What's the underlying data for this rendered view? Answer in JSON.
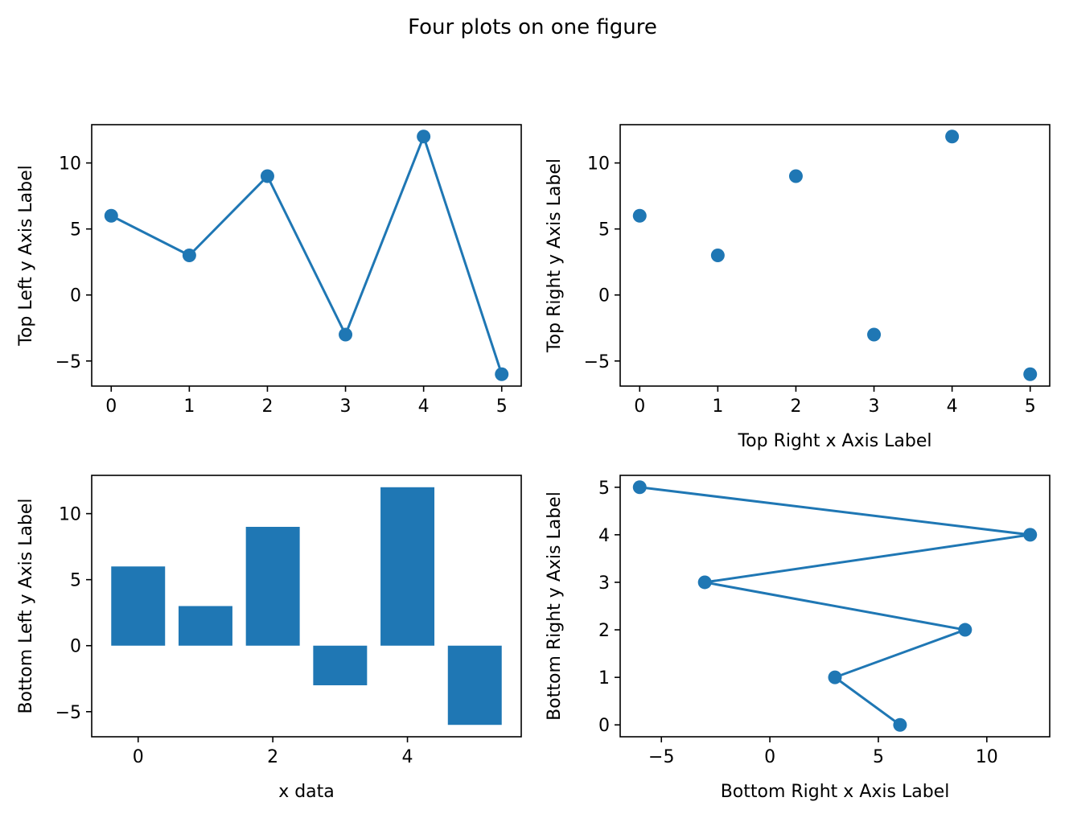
{
  "figure": {
    "title": "Four plots on one figure"
  },
  "colors": {
    "series": "#1f77b4",
    "axis": "#000000"
  },
  "chart_data": [
    {
      "id": "top-left",
      "type": "line",
      "markers": true,
      "x": [
        0,
        1,
        2,
        3,
        4,
        5
      ],
      "y": [
        6,
        3,
        9,
        -3,
        12,
        -6
      ],
      "xlabel": "",
      "ylabel": "Top Left y Axis Label",
      "xlim": [
        -0.25,
        5.25
      ],
      "ylim": [
        -6.9,
        12.9
      ],
      "xticks": [
        0,
        1,
        2,
        3,
        4,
        5
      ],
      "xtick_labels": [
        "0",
        "1",
        "2",
        "3",
        "4",
        "5"
      ],
      "yticks": [
        -5,
        0,
        5,
        10
      ],
      "ytick_labels": [
        "−5",
        "0",
        "5",
        "10"
      ],
      "grid": false
    },
    {
      "id": "top-right",
      "type": "scatter",
      "x": [
        0,
        1,
        2,
        3,
        4,
        5
      ],
      "y": [
        6,
        3,
        9,
        -3,
        12,
        -6
      ],
      "xlabel": "Top Right x Axis Label",
      "ylabel": "Top Right y Axis Label",
      "xlim": [
        -0.25,
        5.25
      ],
      "ylim": [
        -6.9,
        12.9
      ],
      "xticks": [
        0,
        1,
        2,
        3,
        4,
        5
      ],
      "xtick_labels": [
        "0",
        "1",
        "2",
        "3",
        "4",
        "5"
      ],
      "yticks": [
        -5,
        0,
        5,
        10
      ],
      "ytick_labels": [
        "−5",
        "0",
        "5",
        "10"
      ],
      "grid": false
    },
    {
      "id": "bottom-left",
      "type": "bar",
      "x": [
        0,
        1,
        2,
        3,
        4,
        5
      ],
      "y": [
        6,
        3,
        9,
        -3,
        12,
        -6
      ],
      "bar_width": 0.8,
      "xlabel": "x data",
      "ylabel": "Bottom Left y Axis Label",
      "xlim": [
        -0.69,
        5.69
      ],
      "ylim": [
        -6.9,
        12.9
      ],
      "xticks": [
        0,
        2,
        4
      ],
      "xtick_labels": [
        "0",
        "2",
        "4"
      ],
      "yticks": [
        -5,
        0,
        5,
        10
      ],
      "ytick_labels": [
        "−5",
        "0",
        "5",
        "10"
      ],
      "grid": false
    },
    {
      "id": "bottom-right",
      "type": "line",
      "markers": true,
      "x": [
        6,
        3,
        9,
        -3,
        12,
        -6
      ],
      "y": [
        0,
        1,
        2,
        3,
        4,
        5
      ],
      "xlabel": "Bottom Right x Axis Label",
      "ylabel": "Bottom Right y Axis Label",
      "xlim": [
        -6.9,
        12.9
      ],
      "ylim": [
        -0.25,
        5.25
      ],
      "xticks": [
        -5,
        0,
        5,
        10
      ],
      "xtick_labels": [
        "−5",
        "0",
        "5",
        "10"
      ],
      "yticks": [
        0,
        1,
        2,
        3,
        4,
        5
      ],
      "ytick_labels": [
        "0",
        "1",
        "2",
        "3",
        "4",
        "5"
      ],
      "grid": false
    }
  ]
}
